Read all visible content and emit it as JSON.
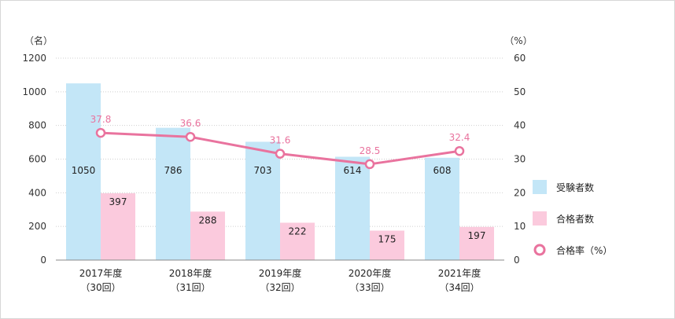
{
  "chart_data": {
    "type": "bar",
    "title": "",
    "y_left_unit": "（名）",
    "y_right_unit": "（%）",
    "ylim_left": [
      0,
      1200
    ],
    "ylim_right": [
      0,
      60
    ],
    "y_left_ticks": [
      "0",
      "200",
      "400",
      "600",
      "800",
      "1000",
      "1200"
    ],
    "y_right_ticks": [
      "0",
      "10",
      "20",
      "30",
      "40",
      "50",
      "60"
    ],
    "grid": true,
    "legend_position": "right",
    "categories": [
      {
        "year": "2017年度",
        "session": "（30回）"
      },
      {
        "year": "2018年度",
        "session": "（31回）"
      },
      {
        "year": "2019年度",
        "session": "（32回）"
      },
      {
        "year": "2020年度",
        "session": "（33回）"
      },
      {
        "year": "2021年度",
        "session": "（34回）"
      }
    ],
    "series": [
      {
        "name": "受験者数",
        "type": "bar",
        "axis": "left",
        "color": "#c3e6f7",
        "values": [
          1050,
          786,
          703,
          614,
          608
        ]
      },
      {
        "name": "合格者数",
        "type": "bar",
        "axis": "left",
        "color": "#fbcadd",
        "values": [
          397,
          288,
          222,
          175,
          197
        ]
      },
      {
        "name": "合格率（%）",
        "type": "line",
        "axis": "right",
        "color": "#e9739e",
        "values": [
          37.8,
          36.6,
          31.6,
          28.5,
          32.4
        ]
      }
    ]
  }
}
